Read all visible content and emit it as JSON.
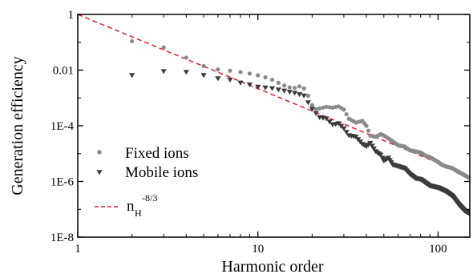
{
  "chart_data": {
    "type": "scatter",
    "title": "",
    "xlabel": "Harmonic order",
    "ylabel": "Generation efficiency",
    "x_scale": "log",
    "y_scale": "log",
    "xlim": [
      1,
      150
    ],
    "ylim": [
      1e-08,
      1
    ],
    "x_ticks": [
      {
        "value": 1,
        "label": "1"
      },
      {
        "value": 10,
        "label": "10"
      },
      {
        "value": 100,
        "label": "100"
      }
    ],
    "y_ticks": [
      {
        "value": 1,
        "label": "1"
      },
      {
        "value": 0.01,
        "label": "0.01"
      },
      {
        "value": 0.0001,
        "label": "1E-4"
      },
      {
        "value": 1e-06,
        "label": "1E-6"
      },
      {
        "value": 1e-08,
        "label": "1E-8"
      }
    ],
    "grid": false,
    "legend_position": "bottom-left",
    "series": [
      {
        "name": "Fixed ions",
        "marker": "circle",
        "color": "#8a8a8a",
        "anchors": [
          [
            2,
            0.11
          ],
          [
            3,
            0.065
          ],
          [
            4,
            0.028
          ],
          [
            5,
            0.014
          ],
          [
            6,
            0.0105
          ],
          [
            7,
            0.0095
          ],
          [
            8,
            0.0085
          ],
          [
            9,
            0.0075
          ],
          [
            10,
            0.0065
          ],
          [
            11,
            0.0055
          ],
          [
            12,
            0.0045
          ],
          [
            13,
            0.0035
          ],
          [
            14,
            0.0028
          ],
          [
            15,
            0.0024
          ],
          [
            16,
            0.0023
          ],
          [
            17,
            0.0026
          ],
          [
            18,
            0.0022
          ],
          [
            19,
            0.0012
          ],
          [
            20,
            0.00055
          ],
          [
            21,
            0.0004
          ],
          [
            22,
            0.00042
          ],
          [
            24,
            0.00048
          ],
          [
            26,
            0.00045
          ],
          [
            28,
            0.0005
          ],
          [
            30,
            0.00038
          ],
          [
            32,
            0.00018
          ],
          [
            35,
            0.00013
          ],
          [
            38,
            0.00015
          ],
          [
            40,
            0.0001
          ],
          [
            42,
            4.5e-05
          ],
          [
            45,
            4e-05
          ],
          [
            48,
            5e-05
          ],
          [
            50,
            4.5e-05
          ],
          [
            55,
            3e-05
          ],
          [
            60,
            2e-05
          ],
          [
            65,
            1.8e-05
          ],
          [
            70,
            1.3e-05
          ],
          [
            75,
            1.2e-05
          ],
          [
            80,
            1.1e-05
          ],
          [
            85,
            8.5e-06
          ],
          [
            90,
            7.5e-06
          ],
          [
            100,
            5e-06
          ],
          [
            105,
            4e-06
          ],
          [
            110,
            3.5e-06
          ],
          [
            120,
            3e-06
          ],
          [
            130,
            2.2e-06
          ],
          [
            140,
            1.7e-06
          ],
          [
            150,
            1.3e-06
          ]
        ]
      },
      {
        "name": "Mobile ions",
        "marker": "triangle-down",
        "color": "#3a3a3a",
        "anchors": [
          [
            2,
            0.0065
          ],
          [
            3,
            0.009
          ],
          [
            4,
            0.0085
          ],
          [
            5,
            0.0065
          ],
          [
            6,
            0.005
          ],
          [
            7,
            0.0045
          ],
          [
            8,
            0.0035
          ],
          [
            9,
            0.003
          ],
          [
            10,
            0.0025
          ],
          [
            12,
            0.0022
          ],
          [
            14,
            0.0018
          ],
          [
            16,
            0.0015
          ],
          [
            18,
            0.0012
          ],
          [
            20,
            0.0004
          ],
          [
            22,
            0.0002
          ],
          [
            24,
            0.00018
          ],
          [
            26,
            0.00011
          ],
          [
            28,
            0.00012
          ],
          [
            30,
            8e-05
          ],
          [
            32,
            4.5e-05
          ],
          [
            35,
            4e-05
          ],
          [
            38,
            2.2e-05
          ],
          [
            40,
            1.8e-05
          ],
          [
            42,
            2.4e-05
          ],
          [
            45,
            1.2e-05
          ],
          [
            48,
            9e-06
          ],
          [
            50,
            5.5e-06
          ],
          [
            53,
            7e-06
          ],
          [
            56,
            4e-06
          ],
          [
            60,
            3.5e-06
          ],
          [
            65,
            3e-06
          ],
          [
            70,
            1.8e-06
          ],
          [
            75,
            1.3e-06
          ],
          [
            80,
            1.2e-06
          ],
          [
            85,
            9e-07
          ],
          [
            90,
            7e-07
          ],
          [
            95,
            6.5e-07
          ],
          [
            100,
            6e-07
          ],
          [
            110,
            4.5e-07
          ],
          [
            120,
            3e-07
          ],
          [
            130,
            1.5e-07
          ],
          [
            140,
            9e-08
          ],
          [
            150,
            7e-08
          ]
        ]
      },
      {
        "name": "n_H^-8/3",
        "name_base": "n",
        "name_sub": "H",
        "name_sup": "-8/3",
        "type": "line",
        "style": "dashed",
        "color": "#e0202a",
        "exponent": -2.6667,
        "x": [
          1,
          150
        ]
      }
    ]
  }
}
